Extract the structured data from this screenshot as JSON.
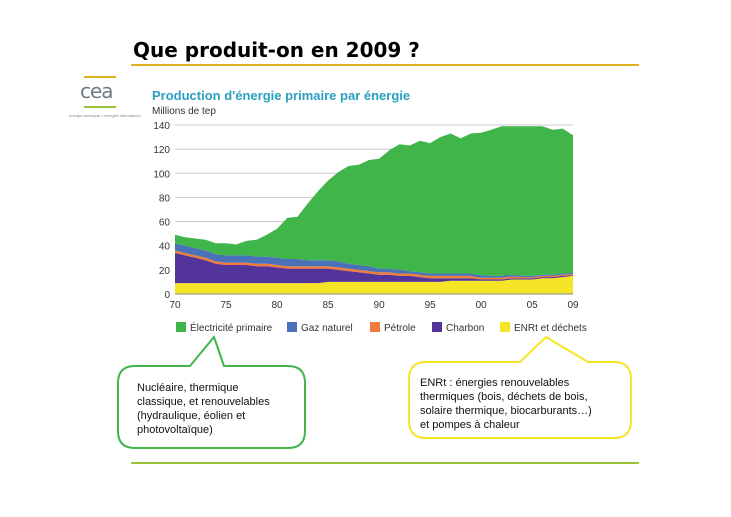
{
  "slide": {
    "title": "Que produit-on en 2009 ?"
  },
  "logo": {
    "text": "cea",
    "caption": "énergie atomique • énergies alternatives"
  },
  "chart_data": {
    "type": "area",
    "title": "Production d'énergie primaire par énergie",
    "ylabel": "Millions de tep",
    "ylim": [
      0,
      140
    ],
    "yticks": [
      0,
      20,
      40,
      60,
      80,
      100,
      120,
      140
    ],
    "xticks": [
      {
        "year": 1970,
        "label": "70"
      },
      {
        "year": 1975,
        "label": "75"
      },
      {
        "year": 1980,
        "label": "80"
      },
      {
        "year": 1985,
        "label": "85"
      },
      {
        "year": 1990,
        "label": "90"
      },
      {
        "year": 1995,
        "label": "95"
      },
      {
        "year": 2000,
        "label": "00"
      },
      {
        "year": 2005,
        "label": "05"
      },
      {
        "year": 2009,
        "label": "09"
      }
    ],
    "stacked": true,
    "legend_position": "bottom",
    "years": [
      1970,
      1971,
      1972,
      1973,
      1974,
      1975,
      1976,
      1977,
      1978,
      1979,
      1980,
      1981,
      1982,
      1983,
      1984,
      1985,
      1986,
      1987,
      1988,
      1989,
      1990,
      1991,
      1992,
      1993,
      1994,
      1995,
      1996,
      1997,
      1998,
      1999,
      2000,
      2001,
      2002,
      2003,
      2004,
      2005,
      2006,
      2007,
      2008,
      2009
    ],
    "series": [
      {
        "name": "ENRt et déchets",
        "color": "#f5e526",
        "values": [
          9,
          9,
          9,
          9,
          9,
          9,
          9,
          9,
          9,
          9,
          9,
          9,
          9,
          9,
          9,
          10,
          10,
          10,
          10,
          10,
          10,
          10,
          10,
          10,
          10,
          10,
          10,
          11,
          11,
          11,
          11,
          11,
          11,
          12,
          12,
          12,
          13,
          13,
          14,
          15
        ]
      },
      {
        "name": "Charbon",
        "color": "#52349a",
        "values": [
          25,
          23,
          21,
          19,
          16,
          15,
          15,
          15,
          14,
          14,
          13,
          12,
          12,
          12,
          12,
          11,
          10,
          9,
          8,
          7,
          6,
          6,
          5,
          5,
          4,
          3,
          3,
          2,
          2,
          2,
          1,
          1,
          1,
          1,
          1,
          1,
          1,
          1,
          1,
          0.5
        ]
      },
      {
        "name": "Pétrole",
        "color": "#f07b3a",
        "values": [
          2,
          2,
          2,
          2,
          2,
          2,
          2,
          2,
          2,
          2,
          2,
          2,
          2,
          2,
          2,
          2,
          2,
          2,
          2,
          2,
          2,
          2,
          2,
          2,
          2,
          2,
          2,
          2,
          2,
          2,
          1.5,
          1.5,
          1.5,
          1.5,
          1,
          1,
          1,
          1,
          1,
          1
        ]
      },
      {
        "name": "Gaz naturel",
        "color": "#4a72b8",
        "values": [
          6,
          6,
          6,
          6,
          6,
          6,
          6,
          6,
          6,
          6,
          6,
          6,
          6,
          5,
          5,
          5,
          5,
          4,
          4,
          4,
          3,
          3,
          3,
          2,
          2,
          2,
          2,
          2,
          2,
          2,
          2,
          1.5,
          1.5,
          1.5,
          1,
          1,
          1,
          1,
          1,
          1
        ]
      },
      {
        "name": "Électricité primaire",
        "color": "#3fb54a",
        "values": [
          7,
          7,
          8,
          9,
          9,
          10,
          9,
          12,
          14,
          18,
          24,
          34,
          35,
          47,
          57,
          66,
          74,
          81,
          83,
          88,
          91,
          98,
          104,
          104,
          109,
          108,
          113,
          116,
          112,
          116,
          118,
          121,
          124,
          123,
          124,
          124,
          123,
          120,
          120,
          114
        ]
      }
    ]
  },
  "legend": {
    "items": [
      {
        "label": "Électricité primaire",
        "color": "#3fb54a"
      },
      {
        "label": "Gaz naturel",
        "color": "#4a72b8"
      },
      {
        "label": "Pétrole",
        "color": "#f07b3a"
      },
      {
        "label": "Charbon",
        "color": "#52349a"
      },
      {
        "label": "ENRt et déchets",
        "color": "#f5e526"
      }
    ]
  },
  "callouts": {
    "left": {
      "lines": [
        "Nucléaire, thermique",
        "classique, et renouvelables",
        "(hydraulique, éolien et",
        "photovoltaïque)"
      ],
      "border": "#3fb54a"
    },
    "right": {
      "lines": [
        "ENRt : énergies renouvelables",
        "thermiques (bois, déchets de bois,",
        "solaire thermique, biocarburants…)",
        "et pompes à chaleur"
      ],
      "border": "#f5e526"
    }
  }
}
